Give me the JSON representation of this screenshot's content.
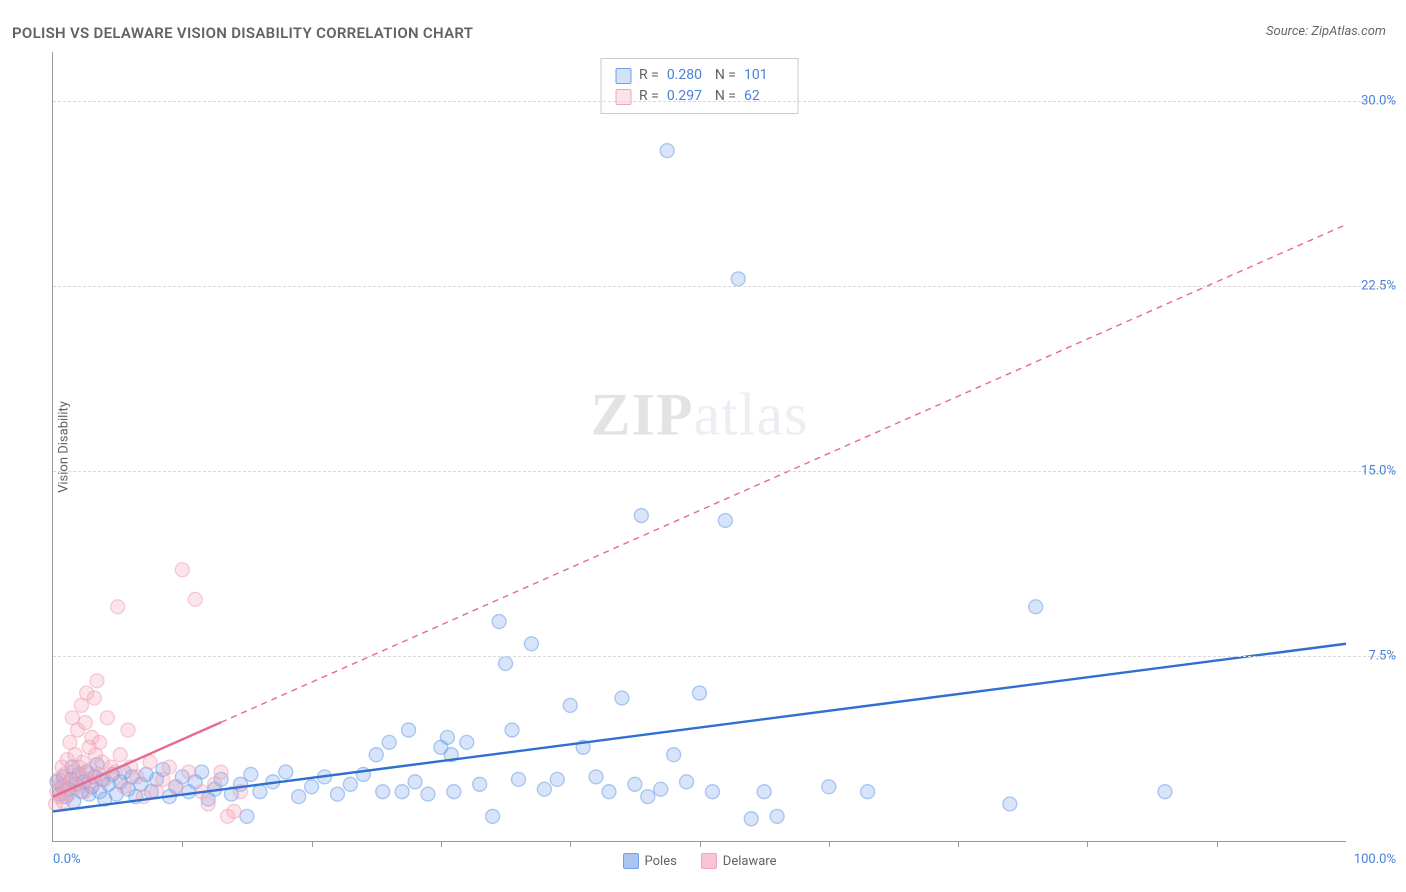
{
  "title": "POLISH VS DELAWARE VISION DISABILITY CORRELATION CHART",
  "source_label": "Source: ZipAtlas.com",
  "ylabel": "Vision Disability",
  "watermark_a": "ZIP",
  "watermark_b": "atlas",
  "chart": {
    "type": "scatter",
    "xlim": [
      0,
      100
    ],
    "ylim": [
      0,
      32
    ],
    "x_min_label": "0.0%",
    "x_max_label": "100.0%",
    "y_ticks": [
      7.5,
      15.0,
      22.5,
      30.0
    ],
    "y_tick_labels": [
      "7.5%",
      "15.0%",
      "22.5%",
      "30.0%"
    ],
    "x_minor_tick_step": 10,
    "grid_color": "#d8d8d8",
    "background_color": "#ffffff",
    "axis_color": "#999999",
    "tick_label_color": "#4a80d6",
    "marker_radius": 7,
    "marker_stroke_opacity": 0.55,
    "marker_fill_opacity": 0.28,
    "line_width_solid": 2.4,
    "line_width_dashed": 1.4,
    "dash_pattern": "6,5"
  },
  "series": [
    {
      "name": "Poles",
      "color": "#6f9fe8",
      "line_color": "#2f6fd0",
      "r_value": "0.280",
      "n_value": "101",
      "trend": {
        "x1": 0,
        "y1": 1.2,
        "x2": 100,
        "y2": 8.0
      },
      "trend_solid_until_x": 100,
      "points": [
        [
          0.3,
          2.4
        ],
        [
          0.5,
          1.9
        ],
        [
          0.7,
          2.2
        ],
        [
          0.8,
          2.6
        ],
        [
          1.0,
          1.8
        ],
        [
          1.2,
          2.1
        ],
        [
          1.4,
          2.5
        ],
        [
          1.5,
          3.0
        ],
        [
          1.6,
          1.6
        ],
        [
          1.8,
          2.3
        ],
        [
          2.0,
          2.7
        ],
        [
          2.2,
          2.0
        ],
        [
          2.4,
          2.4
        ],
        [
          2.6,
          2.8
        ],
        [
          2.8,
          1.9
        ],
        [
          3.0,
          2.2
        ],
        [
          3.2,
          2.6
        ],
        [
          3.4,
          3.1
        ],
        [
          3.6,
          2.0
        ],
        [
          3.8,
          2.5
        ],
        [
          4.0,
          1.7
        ],
        [
          4.3,
          2.3
        ],
        [
          4.6,
          2.7
        ],
        [
          4.9,
          1.9
        ],
        [
          5.2,
          2.4
        ],
        [
          5.5,
          2.8
        ],
        [
          5.8,
          2.1
        ],
        [
          6.1,
          2.6
        ],
        [
          6.4,
          1.8
        ],
        [
          6.8,
          2.3
        ],
        [
          7.2,
          2.7
        ],
        [
          7.6,
          2.0
        ],
        [
          8.0,
          2.5
        ],
        [
          8.5,
          2.9
        ],
        [
          9.0,
          1.8
        ],
        [
          9.5,
          2.2
        ],
        [
          10.0,
          2.6
        ],
        [
          10.5,
          2.0
        ],
        [
          11.0,
          2.4
        ],
        [
          11.5,
          2.8
        ],
        [
          12.0,
          1.7
        ],
        [
          12.5,
          2.1
        ],
        [
          13.0,
          2.5
        ],
        [
          13.8,
          1.9
        ],
        [
          14.5,
          2.3
        ],
        [
          15.0,
          1.0
        ],
        [
          15.3,
          2.7
        ],
        [
          16.0,
          2.0
        ],
        [
          17.0,
          2.4
        ],
        [
          18.0,
          2.8
        ],
        [
          19.0,
          1.8
        ],
        [
          20.0,
          2.2
        ],
        [
          21.0,
          2.6
        ],
        [
          22.0,
          1.9
        ],
        [
          23.0,
          2.3
        ],
        [
          24.0,
          2.7
        ],
        [
          25.0,
          3.5
        ],
        [
          25.5,
          2.0
        ],
        [
          26.0,
          4.0
        ],
        [
          27.0,
          2.0
        ],
        [
          27.5,
          4.5
        ],
        [
          28.0,
          2.4
        ],
        [
          29.0,
          1.9
        ],
        [
          30.0,
          3.8
        ],
        [
          30.5,
          4.2
        ],
        [
          30.8,
          3.5
        ],
        [
          31.0,
          2.0
        ],
        [
          32.0,
          4.0
        ],
        [
          33.0,
          2.3
        ],
        [
          34.0,
          1.0
        ],
        [
          34.5,
          8.9
        ],
        [
          35.0,
          7.2
        ],
        [
          35.5,
          4.5
        ],
        [
          36.0,
          2.5
        ],
        [
          37.0,
          8.0
        ],
        [
          38.0,
          2.1
        ],
        [
          39.0,
          2.5
        ],
        [
          40.0,
          5.5
        ],
        [
          41.0,
          3.8
        ],
        [
          42.0,
          2.6
        ],
        [
          43.0,
          2.0
        ],
        [
          44.0,
          5.8
        ],
        [
          45.0,
          2.3
        ],
        [
          45.5,
          13.2
        ],
        [
          46.0,
          1.8
        ],
        [
          47.0,
          2.1
        ],
        [
          47.5,
          28.0
        ],
        [
          48.0,
          3.5
        ],
        [
          49.0,
          2.4
        ],
        [
          50.0,
          6.0
        ],
        [
          51.0,
          2.0
        ],
        [
          52.0,
          13.0
        ],
        [
          53.0,
          22.8
        ],
        [
          54.0,
          0.9
        ],
        [
          55.0,
          2.0
        ],
        [
          56.0,
          1.0
        ],
        [
          60.0,
          2.2
        ],
        [
          63.0,
          2.0
        ],
        [
          74.0,
          1.5
        ],
        [
          76.0,
          9.5
        ],
        [
          86.0,
          2.0
        ]
      ]
    },
    {
      "name": "Delaware",
      "color": "#f2a3b8",
      "line_color": "#e86a8e",
      "r_value": "0.297",
      "n_value": "62",
      "trend": {
        "x1": 0,
        "y1": 1.8,
        "x2": 100,
        "y2": 25.0
      },
      "trend_solid_until_x": 13,
      "points": [
        [
          0.2,
          1.5
        ],
        [
          0.3,
          2.0
        ],
        [
          0.4,
          2.5
        ],
        [
          0.5,
          1.8
        ],
        [
          0.6,
          2.3
        ],
        [
          0.7,
          3.0
        ],
        [
          0.8,
          1.6
        ],
        [
          0.9,
          2.7
        ],
        [
          1.0,
          2.1
        ],
        [
          1.1,
          3.3
        ],
        [
          1.2,
          1.9
        ],
        [
          1.3,
          4.0
        ],
        [
          1.4,
          2.4
        ],
        [
          1.5,
          5.0
        ],
        [
          1.6,
          2.8
        ],
        [
          1.7,
          3.5
        ],
        [
          1.8,
          2.2
        ],
        [
          1.9,
          4.5
        ],
        [
          2.0,
          3.0
        ],
        [
          2.1,
          2.6
        ],
        [
          2.2,
          5.5
        ],
        [
          2.3,
          3.2
        ],
        [
          2.4,
          2.0
        ],
        [
          2.5,
          4.8
        ],
        [
          2.6,
          6.0
        ],
        [
          2.7,
          2.5
        ],
        [
          2.8,
          3.8
        ],
        [
          2.9,
          2.9
        ],
        [
          3.0,
          4.2
        ],
        [
          3.1,
          2.3
        ],
        [
          3.2,
          5.8
        ],
        [
          3.3,
          3.5
        ],
        [
          3.4,
          6.5
        ],
        [
          3.5,
          2.7
        ],
        [
          3.6,
          4.0
        ],
        [
          3.8,
          3.2
        ],
        [
          4.0,
          2.5
        ],
        [
          4.2,
          5.0
        ],
        [
          4.5,
          3.0
        ],
        [
          4.8,
          2.8
        ],
        [
          5.0,
          9.5
        ],
        [
          5.2,
          3.5
        ],
        [
          5.5,
          2.2
        ],
        [
          5.8,
          4.5
        ],
        [
          6.0,
          3.0
        ],
        [
          6.5,
          2.6
        ],
        [
          7.0,
          1.8
        ],
        [
          7.5,
          3.2
        ],
        [
          8.0,
          2.0
        ],
        [
          8.5,
          2.5
        ],
        [
          9.0,
          3.0
        ],
        [
          9.5,
          2.2
        ],
        [
          10.0,
          11.0
        ],
        [
          10.5,
          2.8
        ],
        [
          11.0,
          9.8
        ],
        [
          11.5,
          2.0
        ],
        [
          12.0,
          1.5
        ],
        [
          12.5,
          2.3
        ],
        [
          13.0,
          2.8
        ],
        [
          13.5,
          1.0
        ],
        [
          14.0,
          1.2
        ],
        [
          14.5,
          2.0
        ]
      ]
    }
  ],
  "legend_bottom": [
    {
      "label": "Poles",
      "color": "#a9c5f0"
    },
    {
      "label": "Delaware",
      "color": "#f7c4d3"
    }
  ]
}
